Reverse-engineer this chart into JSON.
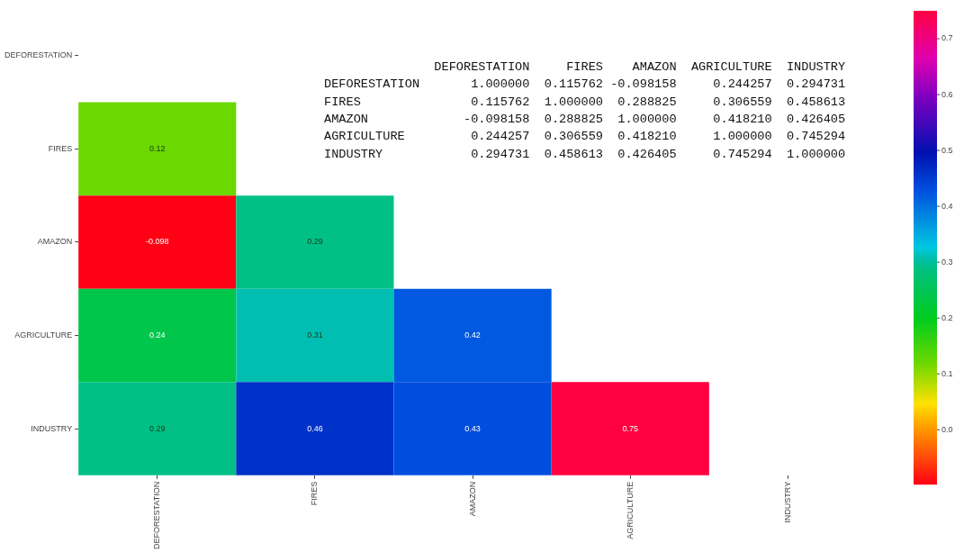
{
  "chart_data": {
    "type": "heatmap",
    "categories": [
      "DEFORESTATION",
      "FIRES",
      "AMAZON",
      "AGRICULTURE",
      "INDUSTRY"
    ],
    "y_categories": [
      "DEFORESTATION",
      "FIRES",
      "AMAZON",
      "AGRICULTURE",
      "INDUSTRY"
    ],
    "cells": [
      [
        null,
        null,
        null,
        null,
        null
      ],
      [
        0.12,
        null,
        null,
        null,
        null
      ],
      [
        -0.098,
        0.29,
        null,
        null,
        null
      ],
      [
        0.24,
        0.31,
        0.42,
        null,
        null
      ],
      [
        0.29,
        0.46,
        0.43,
        0.75,
        null
      ]
    ],
    "data_labels": true,
    "clim": [
      -0.098,
      0.75
    ],
    "cticks": [
      {
        "value": 0,
        "label": "0.0"
      },
      {
        "value": 0.1,
        "label": "0.1"
      },
      {
        "value": 0.2,
        "label": "0.2"
      },
      {
        "value": 0.3,
        "label": "0.3"
      },
      {
        "value": 0.4,
        "label": "0.4"
      },
      {
        "value": 0.5,
        "label": "0.5"
      },
      {
        "value": 0.6,
        "label": "0.6"
      },
      {
        "value": 0.7,
        "label": "0.7"
      }
    ],
    "annotations": [
      "               DEFORESTATION     FIRES    AMAZON  AGRICULTURE  INDUSTRY",
      "DEFORESTATION       1.000000  0.115762 -0.098158     0.244257  0.294731",
      "FIRES               0.115762  1.000000  0.288825     0.306559  0.458613",
      "AMAZON             -0.098158  0.288825  1.000000     0.418210  0.426405",
      "AGRICULTURE         0.244257  0.306559  0.418210     1.000000  0.745294",
      "INDUSTRY            0.294731  0.458613  0.426405     0.745294  1.000000"
    ]
  }
}
